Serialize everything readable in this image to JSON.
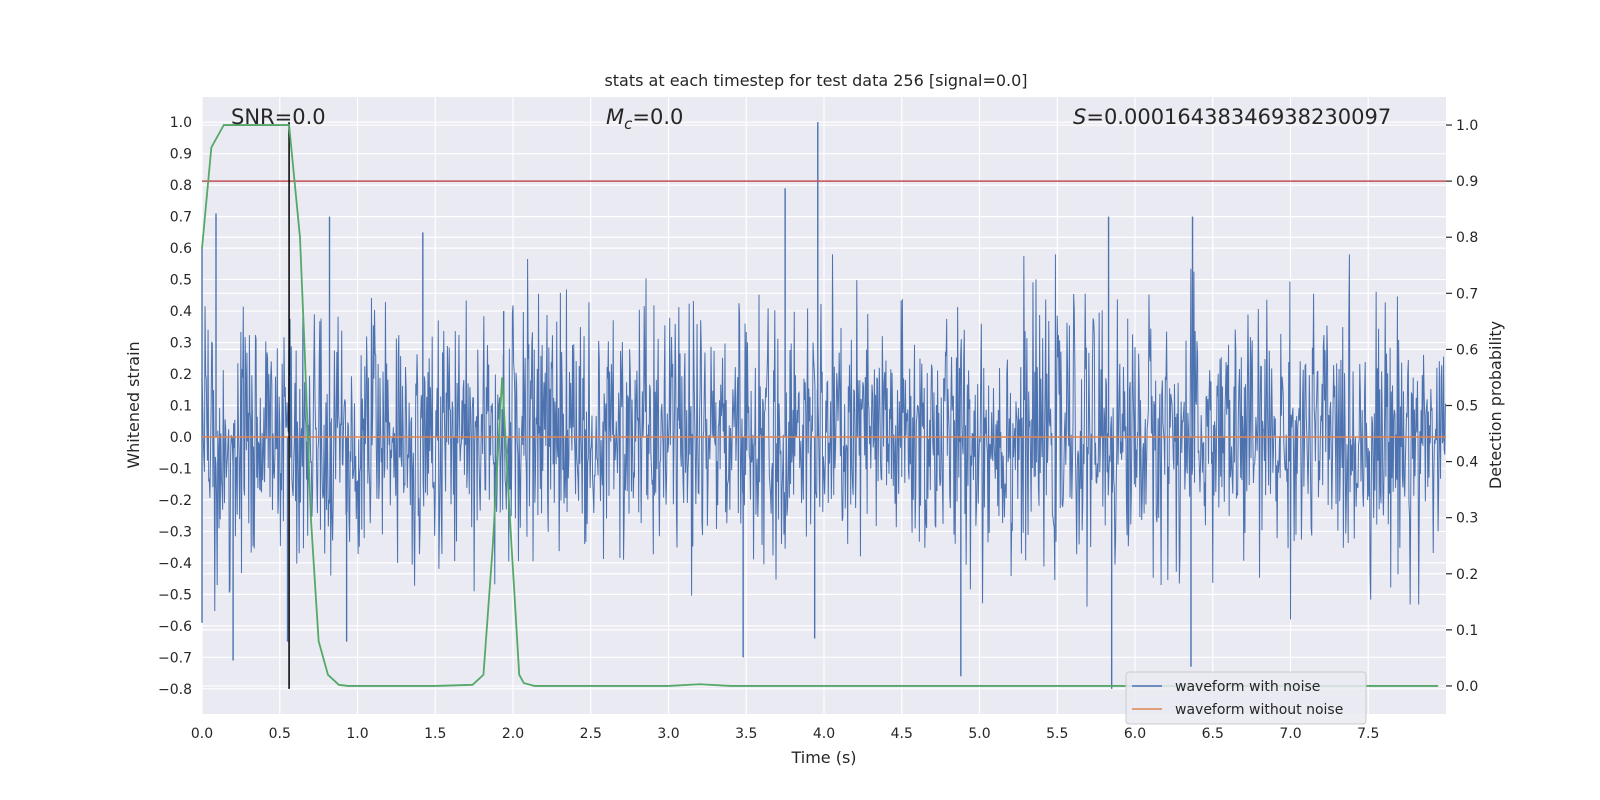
{
  "chart_data": {
    "type": "line",
    "title": "stats at each timestep for test data 256 [signal=0.0]",
    "xlabel": "Time (s)",
    "ylabel": "Whitened strain",
    "y2label": "Detection probability",
    "xlim": [
      0.0,
      8.0
    ],
    "ylim": [
      -0.88,
      1.08
    ],
    "y2lim": [
      -0.05,
      1.05
    ],
    "xticks": [
      0.0,
      0.5,
      1.0,
      1.5,
      2.0,
      2.5,
      3.0,
      3.5,
      4.0,
      4.5,
      5.0,
      5.5,
      6.0,
      6.5,
      7.0,
      7.5
    ],
    "xtick_labels": [
      "0.0",
      "0.5",
      "1.0",
      "1.5",
      "2.0",
      "2.5",
      "3.0",
      "3.5",
      "4.0",
      "4.5",
      "5.0",
      "5.5",
      "6.0",
      "6.5",
      "7.0",
      "7.5"
    ],
    "yticks": [
      1.0,
      0.9,
      0.8,
      0.7,
      0.6,
      0.5,
      0.4,
      0.3,
      0.2,
      0.1,
      0.0,
      -0.1,
      -0.2,
      -0.3,
      -0.4,
      -0.5,
      -0.6,
      -0.7,
      -0.8
    ],
    "ytick_labels": [
      "1.0",
      "0.9",
      "0.8",
      "0.7",
      "0.6",
      "0.5",
      "0.4",
      "0.3",
      "0.2",
      "0.1",
      "0.0",
      "−0.1",
      "−0.2",
      "−0.3",
      "−0.4",
      "−0.5",
      "−0.6",
      "−0.7",
      "−0.8"
    ],
    "y2ticks": [
      1.0,
      0.9,
      0.8,
      0.7,
      0.6,
      0.5,
      0.4,
      0.3,
      0.2,
      0.1,
      0.0
    ],
    "y2tick_labels": [
      "1.0",
      "0.9",
      "0.8",
      "0.7",
      "0.6",
      "0.5",
      "0.4",
      "0.3",
      "0.2",
      "0.1",
      "0.0"
    ],
    "grid": true,
    "legend_position": "bottom-right",
    "legend": [
      {
        "label": "waveform with noise",
        "color": "#4c72b0"
      },
      {
        "label": "waveform without noise",
        "color": "#dd8452"
      }
    ],
    "annotations": {
      "snr": {
        "prefix": "SNR=",
        "value": "0.0"
      },
      "mc": {
        "symbol": "M",
        "subscript": "c",
        "value": "=0.0"
      },
      "s": {
        "symbol": "S",
        "value": "=0.00016438346938230097"
      }
    },
    "series": [
      {
        "name": "waveform with noise",
        "axis": "left",
        "color": "#4c72b0",
        "noise_envelope": {
          "typical_abs": 0.27,
          "range": [
            -0.8,
            1.0
          ]
        },
        "spikes": [
          {
            "x": 0.0,
            "y": 0.6
          },
          {
            "x": 0.0,
            "y": -0.59
          },
          {
            "x": 0.09,
            "y": 0.71
          },
          {
            "x": 0.2,
            "y": -0.71
          },
          {
            "x": 0.55,
            "y": -0.65
          },
          {
            "x": 0.82,
            "y": 0.7
          },
          {
            "x": 0.93,
            "y": -0.65
          },
          {
            "x": 1.42,
            "y": 0.65
          },
          {
            "x": 1.94,
            "y": 0.4
          },
          {
            "x": 3.48,
            "y": -0.7
          },
          {
            "x": 3.75,
            "y": 0.79
          },
          {
            "x": 3.96,
            "y": 1.0
          },
          {
            "x": 3.94,
            "y": -0.64
          },
          {
            "x": 4.88,
            "y": -0.76
          },
          {
            "x": 5.85,
            "y": -0.8
          },
          {
            "x": 5.83,
            "y": 0.7
          },
          {
            "x": 6.36,
            "y": -0.73
          },
          {
            "x": 6.37,
            "y": 0.7
          }
        ]
      },
      {
        "name": "waveform without noise",
        "axis": "left",
        "color": "#dd8452",
        "x": [
          0.0,
          8.0
        ],
        "y": [
          0.0,
          0.0
        ]
      },
      {
        "name": "",
        "axis": "right",
        "color": "#55a868",
        "x": [
          0.0,
          0.06,
          0.14,
          0.25,
          0.56,
          0.63,
          0.66,
          0.7,
          0.75,
          0.81,
          0.88,
          0.94,
          1.0,
          1.2,
          1.5,
          1.74,
          1.81,
          1.87,
          1.93,
          1.98,
          2.04,
          2.07,
          2.14,
          2.5,
          3.0,
          3.2,
          3.4,
          4.0,
          5.0,
          6.0,
          7.0,
          7.95
        ],
        "y": [
          0.78,
          0.96,
          1.0,
          1.0,
          1.0,
          0.8,
          0.6,
          0.3,
          0.08,
          0.02,
          0.002,
          0.0,
          0.0,
          0.0,
          0.0,
          0.002,
          0.02,
          0.25,
          0.55,
          0.3,
          0.02,
          0.005,
          0.0,
          0.0,
          0.0,
          0.003,
          0.0,
          0.0,
          0.0,
          0.0,
          0.0,
          0.0
        ]
      }
    ],
    "reference_lines": [
      {
        "orientation": "horizontal",
        "axis": "right",
        "value": 0.9,
        "color": "#c44e52"
      },
      {
        "orientation": "vertical",
        "axis": "left",
        "value": 0.56,
        "range": [
          -0.8,
          1.0
        ],
        "color": "#000000"
      }
    ]
  }
}
